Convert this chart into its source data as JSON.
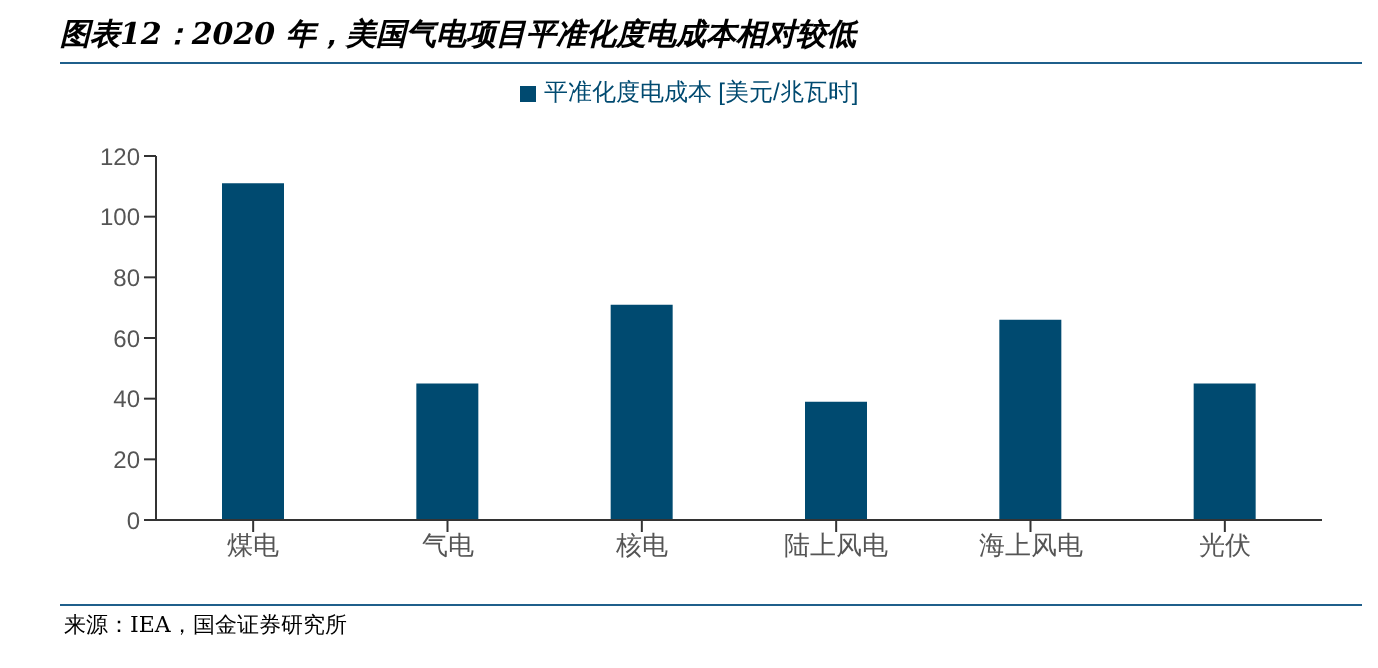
{
  "chart_data": {
    "type": "bar",
    "title": "图表12：2020 年，美国气电项目平准化度电成本相对较低",
    "categories": [
      "煤电",
      "气电",
      "核电",
      "陆上风电",
      "海上风电",
      "光伏"
    ],
    "series": [
      {
        "name": "平准化度电成本 [美元/兆瓦时]",
        "color": "#004a70",
        "values": [
          111,
          45,
          71,
          39,
          66,
          45
        ]
      }
    ],
    "ylim": [
      0,
      120
    ],
    "yticks": [
      0,
      20,
      40,
      60,
      80,
      100,
      120
    ],
    "legend": "top",
    "annotations": [
      "来源：IEA，国金证券研究所"
    ]
  }
}
